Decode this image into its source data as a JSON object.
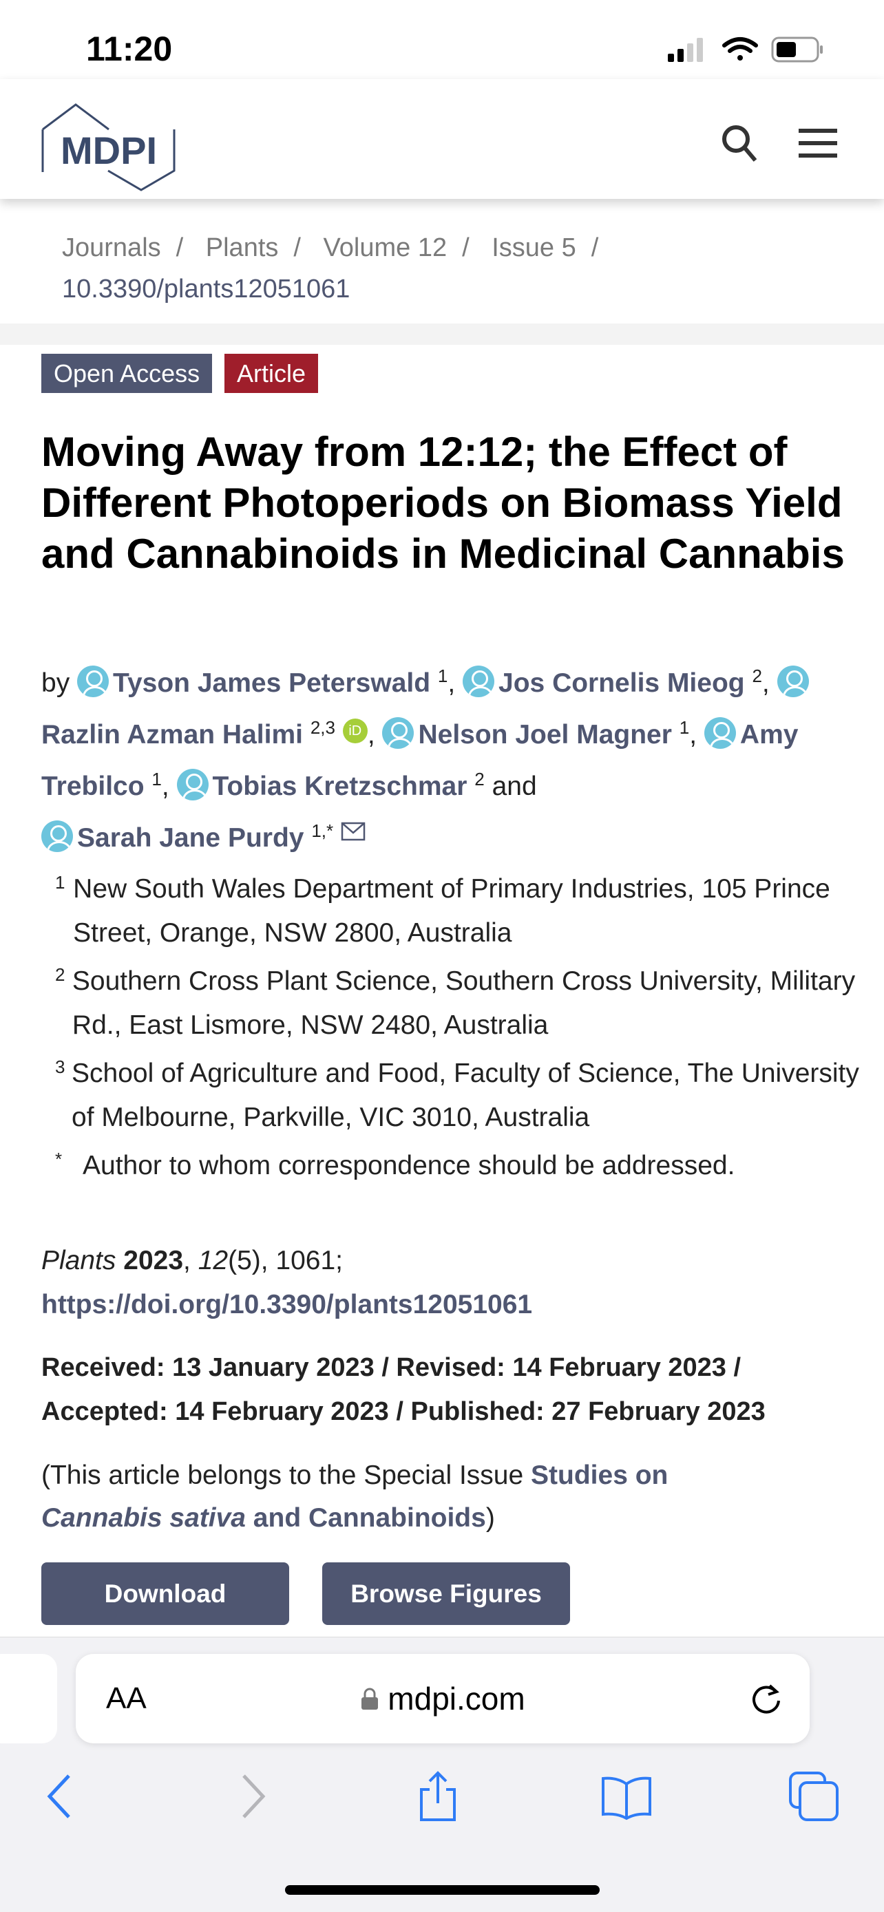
{
  "status": {
    "time": "11:20"
  },
  "header": {
    "logo": "MDPI",
    "search_icon": "search-icon",
    "menu_icon": "menu-icon"
  },
  "breadcrumb": {
    "items": [
      "Journals",
      "Plants",
      "Volume 12",
      "Issue 5"
    ],
    "doi": "10.3390/plants12051061"
  },
  "badges": {
    "open_access": "Open Access",
    "article": "Article",
    "colors": {
      "open_access": "#4f5671",
      "article": "#9f1e2b"
    }
  },
  "title": "Moving Away from 12:12; the Effect of Different Photoperiods on Biomass Yield and Cannabinoids in Medicinal Cannabis",
  "authors": {
    "by": "by",
    "and": "and",
    "list": [
      {
        "name": "Tyson James Peterswald",
        "sup": "1"
      },
      {
        "name": "Jos Cornelis Mieog",
        "sup": "2"
      },
      {
        "name": "Razlin Azman Halimi",
        "sup": "2,3"
      },
      {
        "name": "Nelson Joel Magner",
        "sup": "1"
      },
      {
        "name": "Amy Trebilco",
        "sup": "1"
      },
      {
        "name": "Tobias Kretzschmar",
        "sup": "2"
      },
      {
        "name": "Sarah Jane Purdy",
        "sup": "1,*"
      }
    ],
    "orcid": "iD"
  },
  "affiliations": [
    {
      "n": "1",
      "text": "New South Wales Department of Primary Industries, 105 Prince Street, Orange, NSW 2800, Australia"
    },
    {
      "n": "2",
      "text": "Southern Cross Plant Science, Southern Cross University, Military Rd., East Lismore, NSW 2480, Australia"
    },
    {
      "n": "3",
      "text": "School of Agriculture and Food, Faculty of Science, The University of Melbourne, Parkville, VIC 3010, Australia"
    },
    {
      "n": "*",
      "text": "Author to whom correspondence should be addressed."
    }
  ],
  "citation": {
    "journal": "Plants",
    "year": "2023",
    "volume": "12",
    "issue": "(5)",
    "rest": ", 1061;",
    "doi_url": "https://doi.org/10.3390/plants12051061"
  },
  "dates": {
    "line1": "Received: 13 January 2023 / Revised: 14 February 2023 /",
    "line2": "Accepted: 14 February 2023 / Published: 27 February 2023"
  },
  "special_issue": {
    "prefix": "(This article belongs to the Special Issue ",
    "link_1": "Studies on",
    "link_italic": "Cannabis sativa",
    "link_2": " and Cannabinoids",
    "suffix": ")"
  },
  "buttons": {
    "download": "Download",
    "browse": "Browse Figures"
  },
  "safari": {
    "aa": "AA",
    "url": "mdpi.com"
  }
}
